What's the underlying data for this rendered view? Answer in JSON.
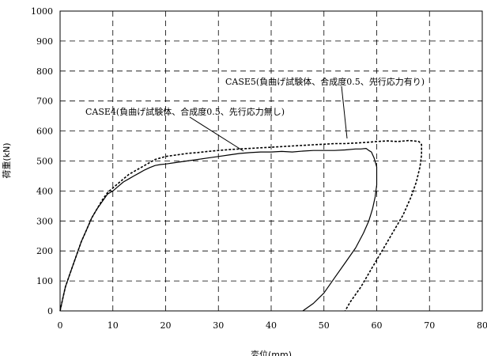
{
  "chart_data": {
    "type": "line",
    "xlabel": "変位(mm)",
    "ylabel": "荷重(kN)",
    "xlim": [
      0,
      80
    ],
    "ylim": [
      0,
      1000
    ],
    "grid": true,
    "x_ticks": [
      "0",
      "10",
      "20",
      "30",
      "40",
      "50",
      "60",
      "70",
      "80"
    ],
    "y_ticks": [
      "0",
      "100",
      "200",
      "300",
      "400",
      "500",
      "600",
      "700",
      "800",
      "900",
      "1000"
    ],
    "series": [
      {
        "name": "CASE4(負曲げ試験体、合成度0.5、先行応力無し)",
        "line_style": "solid",
        "x": [
          0,
          0.5,
          1,
          2,
          3,
          4,
          5,
          6,
          7,
          8,
          9,
          10,
          11,
          12,
          13,
          14,
          15,
          16,
          17,
          18,
          19,
          20,
          22,
          24,
          26,
          28,
          30,
          32,
          34,
          36,
          38,
          40,
          42,
          44,
          46,
          48,
          50,
          52,
          54,
          56,
          57,
          58,
          58.5,
          59,
          59.5,
          60,
          60,
          59.7,
          59.2,
          58.5,
          57.5,
          56,
          54,
          52,
          50,
          48,
          46
        ],
        "y": [
          0,
          40,
          80,
          130,
          180,
          230,
          270,
          310,
          340,
          365,
          390,
          400,
          415,
          430,
          440,
          450,
          460,
          470,
          478,
          485,
          488,
          490,
          495,
          500,
          505,
          510,
          515,
          520,
          525,
          528,
          530,
          530,
          532,
          530,
          533,
          535,
          535,
          535,
          537,
          540,
          540,
          542,
          535,
          530,
          510,
          480,
          420,
          380,
          340,
          300,
          260,
          210,
          160,
          110,
          60,
          25,
          0
        ]
      },
      {
        "name": "CASE5(負曲げ試験体、合成度0.5、先行応力有り)",
        "line_style": "dotted",
        "x": [
          0,
          0.5,
          1,
          2,
          3,
          4,
          5,
          6,
          7,
          8,
          9,
          10,
          11,
          12,
          13,
          14,
          15,
          16,
          17,
          18,
          19,
          20,
          22,
          24,
          26,
          28,
          30,
          32,
          34,
          36,
          38,
          40,
          42,
          44,
          46,
          48,
          50,
          52,
          54,
          56,
          58,
          60,
          62,
          64,
          66,
          67,
          68,
          68.5,
          68.5,
          68.2,
          67.5,
          66.5,
          65,
          63,
          61,
          59,
          57,
          55,
          54
        ],
        "y": [
          0,
          40,
          80,
          130,
          180,
          230,
          270,
          310,
          340,
          370,
          395,
          410,
          425,
          440,
          455,
          465,
          475,
          485,
          495,
          505,
          510,
          515,
          520,
          525,
          528,
          532,
          535,
          538,
          540,
          542,
          544,
          546,
          548,
          550,
          552,
          554,
          556,
          558,
          558,
          560,
          562,
          565,
          567,
          565,
          568,
          567,
          565,
          555,
          520,
          480,
          430,
          380,
          320,
          260,
          200,
          140,
          80,
          30,
          0
        ]
      }
    ],
    "annotations": [
      {
        "text": "CASE5(負曲げ試験体、合成度0.5、先行応力有り)",
        "target": [
          48,
          560
        ]
      },
      {
        "text": "CASE4(負曲げ試験体、合成度0.5、先行応力無し)",
        "target": [
          35,
          520
        ]
      }
    ]
  }
}
